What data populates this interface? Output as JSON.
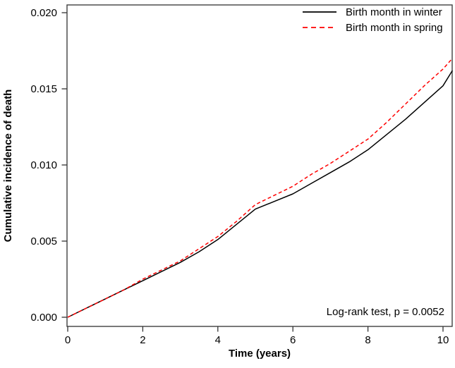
{
  "chart_data": {
    "type": "line",
    "title": "",
    "xlabel": "Time (years)",
    "ylabel": "Cumulative incidence of death",
    "xlim": [
      0,
      10.3
    ],
    "ylim": [
      0,
      0.02
    ],
    "grid": false,
    "legend_position": "top-right-inside",
    "annotation": "Log-rank test, p = 0.0052",
    "xticks": {
      "values": [
        0,
        2,
        4,
        6,
        8,
        10
      ],
      "labels": [
        "0",
        "2",
        "4",
        "6",
        "8",
        "10"
      ]
    },
    "yticks": {
      "values": [
        0,
        0.005,
        0.01,
        0.015,
        0.02
      ],
      "labels": [
        "0.000",
        "0.005",
        "0.010",
        "0.015",
        "0.020"
      ]
    },
    "series": [
      {
        "name": "Birth month in winter",
        "color": "#000000",
        "style": "solid",
        "x": [
          0,
          0.5,
          1,
          1.5,
          2,
          2.5,
          3,
          3.5,
          4,
          4.5,
          5,
          5.5,
          6,
          6.5,
          7,
          7.5,
          8,
          8.5,
          9,
          9.5,
          10,
          10.25
        ],
        "y": [
          0.0,
          0.0006,
          0.0012,
          0.0018,
          0.0024,
          0.003,
          0.0036,
          0.0043,
          0.0051,
          0.0061,
          0.0071,
          0.0076,
          0.0081,
          0.0088,
          0.0095,
          0.0102,
          0.011,
          0.012,
          0.013,
          0.0141,
          0.0152,
          0.0162
        ]
      },
      {
        "name": "Birth month in spring",
        "color": "#fe0000",
        "style": "dashed",
        "x": [
          0,
          0.5,
          1,
          1.5,
          2,
          2.5,
          3,
          3.5,
          4,
          4.5,
          5,
          5.5,
          6,
          6.5,
          7,
          7.5,
          8,
          8.5,
          9,
          9.5,
          10,
          10.25
        ],
        "y": [
          0.0,
          0.0006,
          0.0012,
          0.0018,
          0.0025,
          0.0031,
          0.0037,
          0.0045,
          0.0053,
          0.0063,
          0.0074,
          0.008,
          0.0086,
          0.0094,
          0.0101,
          0.0109,
          0.0117,
          0.0128,
          0.014,
          0.0152,
          0.0163,
          0.017
        ]
      }
    ]
  }
}
